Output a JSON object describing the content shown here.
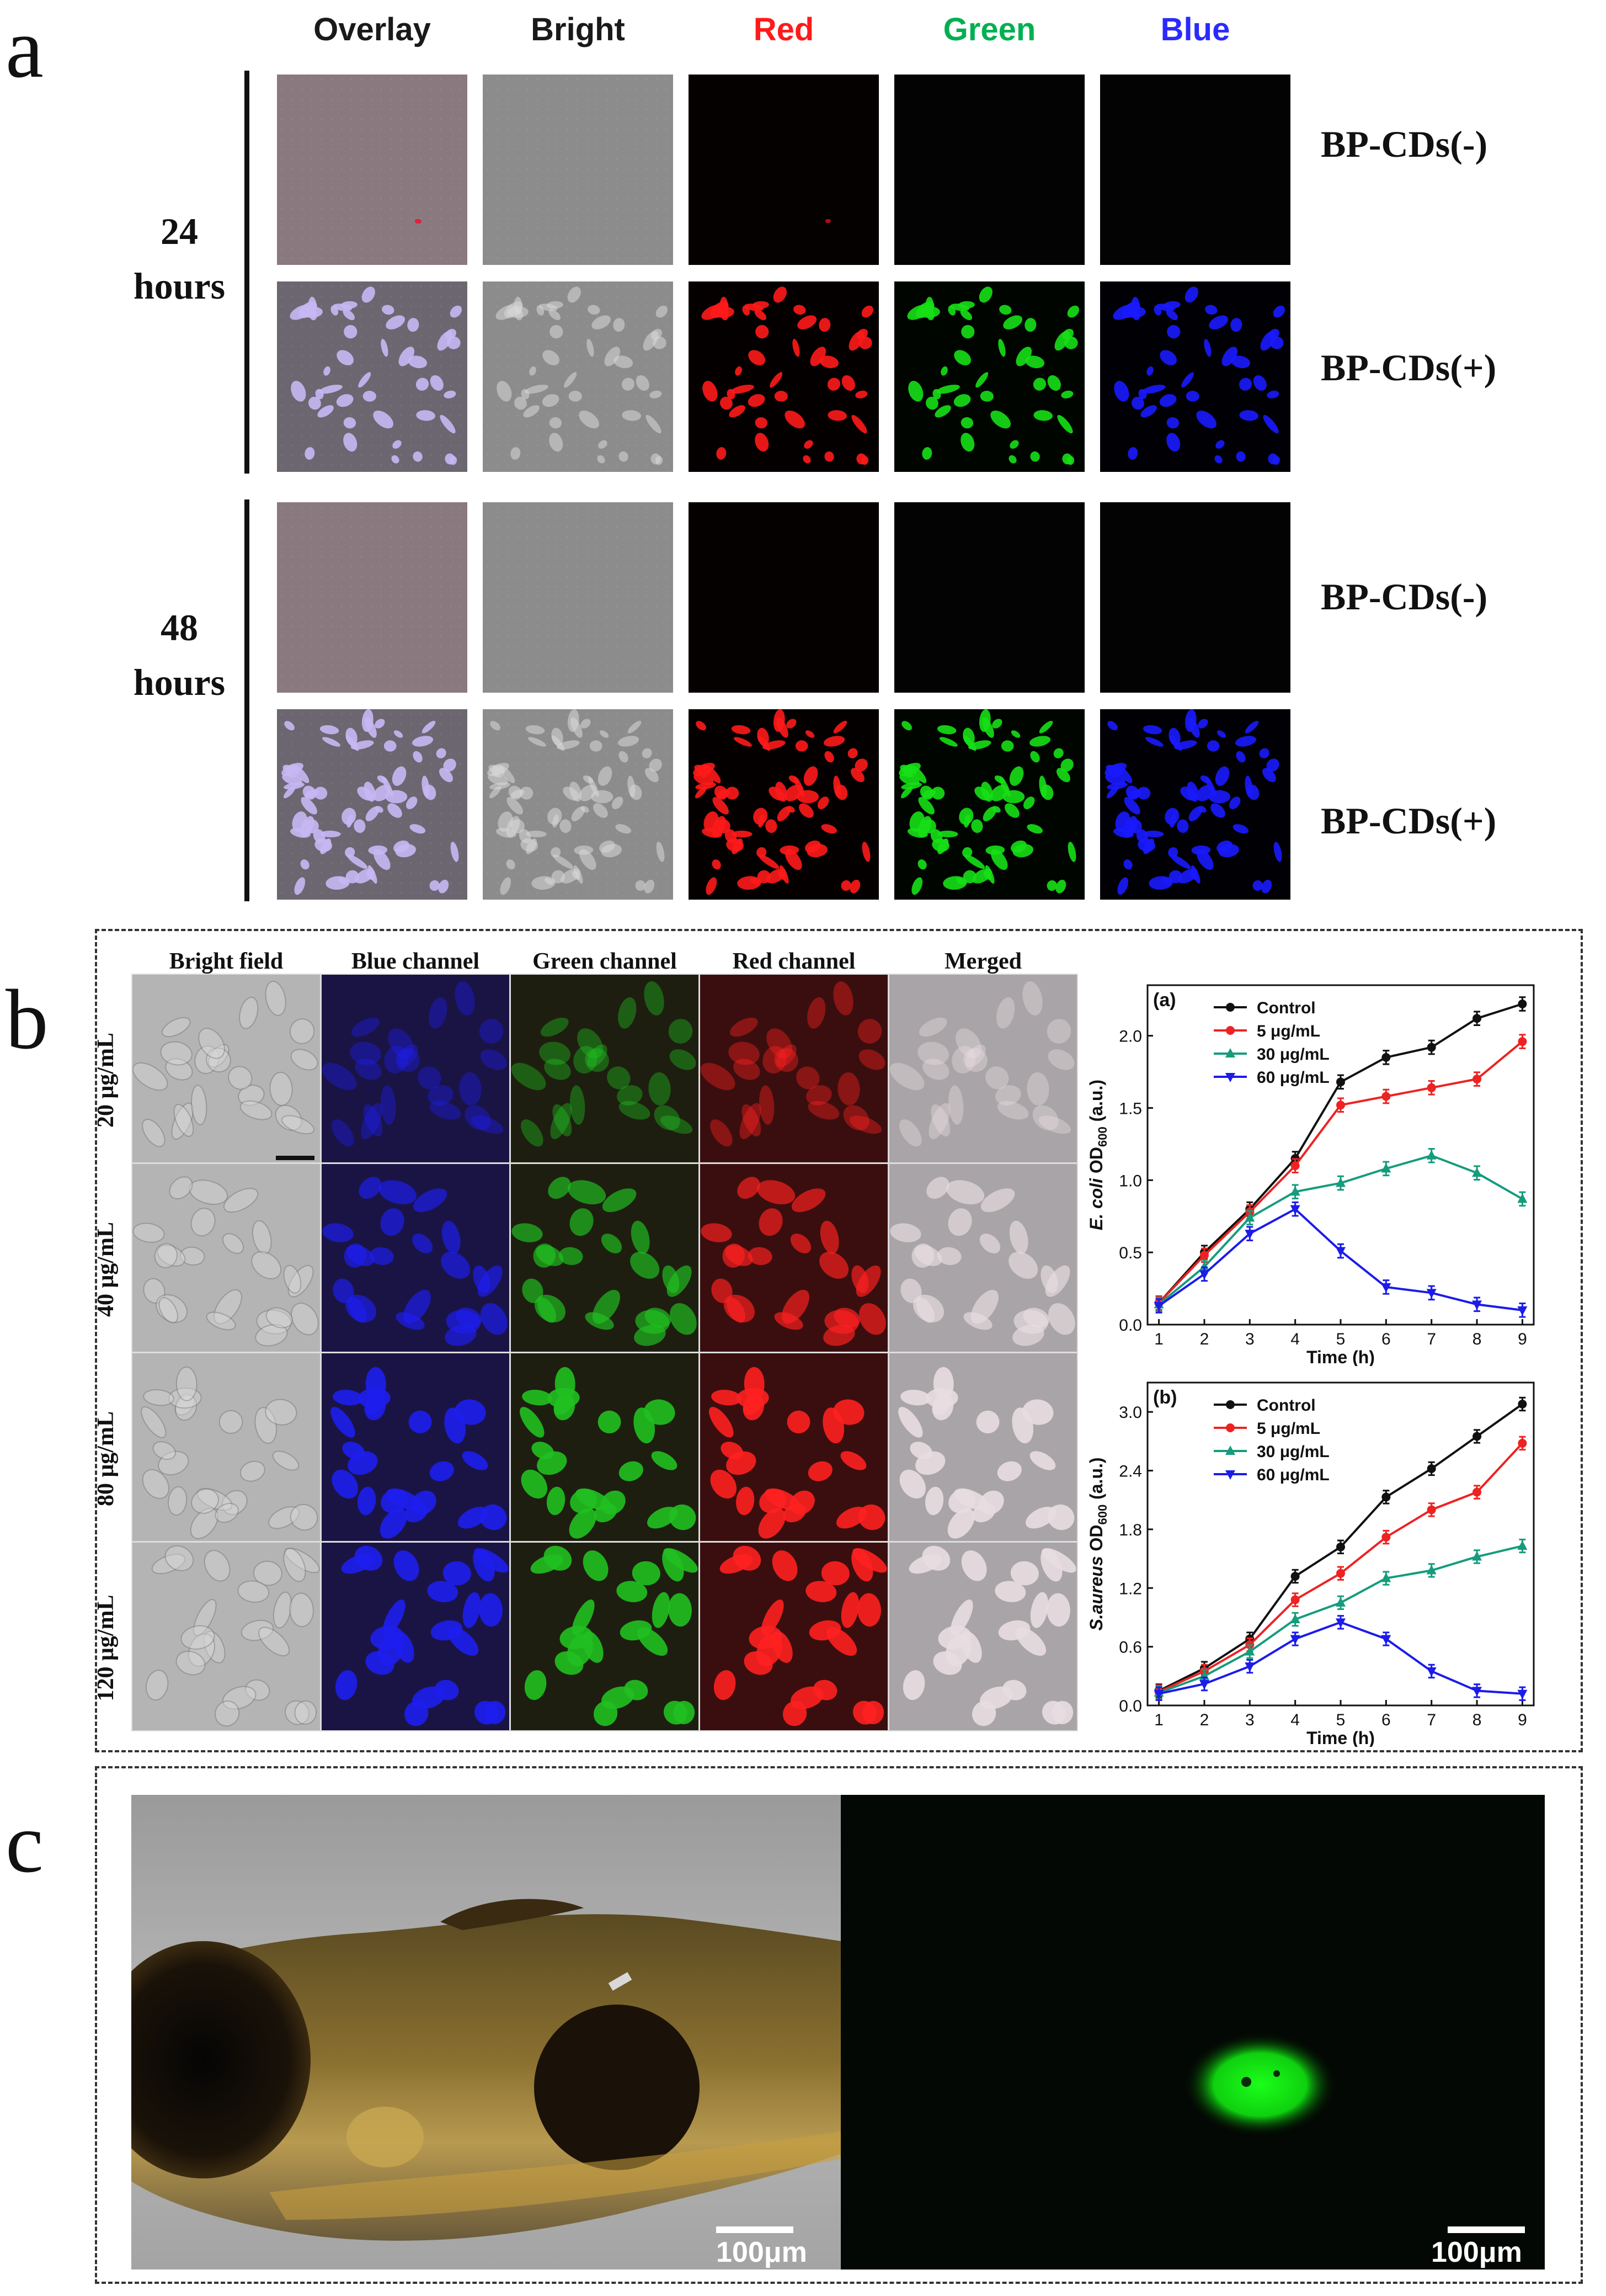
{
  "panel_a": {
    "label": "a",
    "channels": [
      {
        "name": "Overlay",
        "color": "#1a1a1a"
      },
      {
        "name": "Bright",
        "color": "#1a1a1a"
      },
      {
        "name": "Red",
        "color": "#ff1a1a"
      },
      {
        "name": "Green",
        "color": "#00b050"
      },
      {
        "name": "Blue",
        "color": "#2a2aff"
      }
    ],
    "groups": [
      {
        "time_line1": "24",
        "time_line2": "hours",
        "rows": [
          {
            "condition": "BP-CDs(-)"
          },
          {
            "condition": "BP-CDs(+)"
          }
        ]
      },
      {
        "time_line1": "48",
        "time_line2": "hours",
        "rows": [
          {
            "condition": "BP-CDs(-)"
          },
          {
            "condition": "BP-CDs(+)"
          }
        ]
      }
    ]
  },
  "panel_b": {
    "label": "b",
    "columns": [
      "Bright field",
      "Blue channel",
      "Green channel",
      "Red channel",
      "Merged"
    ],
    "concentrations": [
      "20 μg/mL",
      "40 μg/mL",
      "80 μg/mL",
      "120 μg/mL"
    ]
  },
  "panel_c": {
    "label": "c",
    "scalebar_left": "100μm",
    "scalebar_right": "100μm"
  },
  "chart_data": [
    {
      "type": "line",
      "panel_tag": "(a)",
      "xlabel": "Time (h)",
      "ylabel_italic": "E. coli",
      "ylabel_main": " OD",
      "ylabel_sub": "600",
      "ylabel_tail": " (a.u.)",
      "x": [
        1,
        2,
        3,
        4,
        5,
        6,
        7,
        8,
        9
      ],
      "xlim": [
        0.75,
        9.25
      ],
      "ylim": [
        0,
        2.35
      ],
      "yticks": [
        0.0,
        0.5,
        1.0,
        1.5,
        2.0
      ],
      "ytick_labels": [
        "0.0",
        "0.5",
        "1.0",
        "1.5",
        "2.0"
      ],
      "xtick_labels": [
        "1",
        "2",
        "3",
        "4",
        "5",
        "6",
        "7",
        "8",
        "9"
      ],
      "legend_position": "top-left",
      "series": [
        {
          "name": "Control",
          "color": "#111111",
          "marker": "circle",
          "values": [
            0.15,
            0.5,
            0.8,
            1.15,
            1.68,
            1.85,
            1.92,
            2.12,
            2.22
          ]
        },
        {
          "name": "5 μg/mL",
          "color": "#ee2222",
          "marker": "circle",
          "values": [
            0.15,
            0.48,
            0.78,
            1.1,
            1.52,
            1.58,
            1.64,
            1.7,
            1.96
          ]
        },
        {
          "name": "30 μg/mL",
          "color": "#159c7c",
          "marker": "triangle-up",
          "values": [
            0.14,
            0.4,
            0.74,
            0.92,
            0.98,
            1.08,
            1.17,
            1.05,
            0.87
          ]
        },
        {
          "name": "60 μg/mL",
          "color": "#1b1bea",
          "marker": "triangle-down",
          "values": [
            0.13,
            0.35,
            0.63,
            0.8,
            0.51,
            0.26,
            0.22,
            0.14,
            0.1
          ]
        }
      ]
    },
    {
      "type": "line",
      "panel_tag": "(b)",
      "xlabel": "Time (h)",
      "ylabel_italic": "S.aureus",
      "ylabel_main": " OD",
      "ylabel_sub": "600",
      "ylabel_tail": " (a.u.)",
      "x": [
        1,
        2,
        3,
        4,
        5,
        6,
        7,
        8,
        9
      ],
      "xlim": [
        0.75,
        9.25
      ],
      "ylim": [
        0,
        3.3
      ],
      "yticks": [
        0.0,
        0.6,
        1.2,
        1.8,
        2.4,
        3.0
      ],
      "ytick_labels": [
        "0.0",
        "0.6",
        "1.2",
        "1.8",
        "2.4",
        "3.0"
      ],
      "xtick_labels": [
        "1",
        "2",
        "3",
        "4",
        "5",
        "6",
        "7",
        "8",
        "9"
      ],
      "legend_position": "top-left",
      "series": [
        {
          "name": "Control",
          "color": "#111111",
          "marker": "circle",
          "values": [
            0.15,
            0.38,
            0.68,
            1.32,
            1.62,
            2.13,
            2.42,
            2.75,
            3.08
          ]
        },
        {
          "name": "5 μg/mL",
          "color": "#ee2222",
          "marker": "circle",
          "values": [
            0.14,
            0.35,
            0.62,
            1.08,
            1.35,
            1.72,
            2.0,
            2.18,
            2.68
          ]
        },
        {
          "name": "30 μg/mL",
          "color": "#159c7c",
          "marker": "triangle-up",
          "values": [
            0.13,
            0.3,
            0.55,
            0.88,
            1.05,
            1.3,
            1.38,
            1.52,
            1.63
          ]
        },
        {
          "name": "60 μg/mL",
          "color": "#1b1bea",
          "marker": "triangle-down",
          "values": [
            0.12,
            0.22,
            0.4,
            0.68,
            0.85,
            0.68,
            0.35,
            0.15,
            0.12
          ]
        }
      ]
    }
  ]
}
